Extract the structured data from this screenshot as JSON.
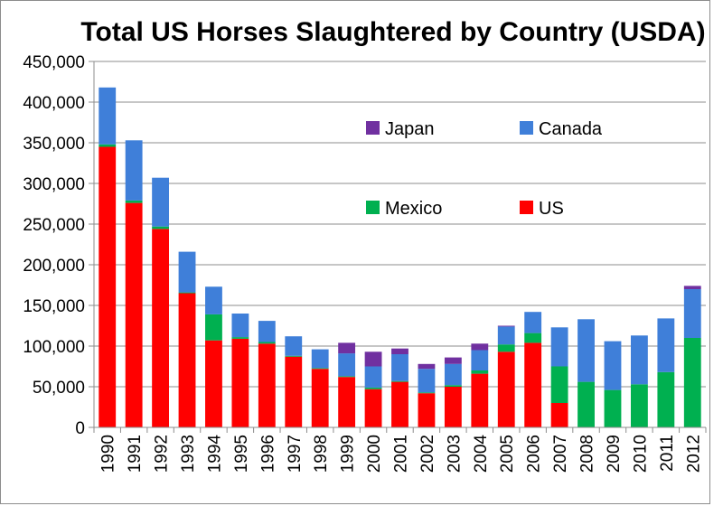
{
  "chart_data": {
    "type": "bar",
    "stacked": true,
    "title": "Total US Horses Slaughtered by Country (USDA)",
    "xlabel": "",
    "ylabel": "",
    "ylim": [
      0,
      450000
    ],
    "yticks": [
      0,
      50000,
      100000,
      150000,
      200000,
      250000,
      300000,
      350000,
      400000,
      450000
    ],
    "ytick_labels": [
      "0",
      "50,000",
      "100,000",
      "150,000",
      "200,000",
      "250,000",
      "300,000",
      "350,000",
      "400,000",
      "450,000"
    ],
    "grid": true,
    "legend_order": [
      "Japan",
      "Canada",
      "Mexico",
      "US"
    ],
    "categories": [
      "1990",
      "1991",
      "1992",
      "1993",
      "1994",
      "1995",
      "1996",
      "1997",
      "1998",
      "1999",
      "2000",
      "2001",
      "2002",
      "2003",
      "2004",
      "2005",
      "2006",
      "2007",
      "2008",
      "2009",
      "2010",
      "2011",
      "2012"
    ],
    "series": [
      {
        "name": "US",
        "color": "#ff0000",
        "values": [
          345000,
          276000,
          244000,
          165000,
          107000,
          109000,
          103000,
          87000,
          72000,
          62000,
          47000,
          56000,
          42000,
          50000,
          66000,
          93000,
          104000,
          30000,
          0,
          0,
          0,
          0,
          0
        ]
      },
      {
        "name": "Mexico",
        "color": "#00b050",
        "values": [
          3000,
          3000,
          3000,
          1000,
          32000,
          2000,
          2000,
          1000,
          1000,
          1000,
          2000,
          1000,
          1000,
          2000,
          4000,
          9000,
          12000,
          45000,
          56000,
          46000,
          53000,
          68000,
          110000
        ]
      },
      {
        "name": "Canada",
        "color": "#3f7fd9",
        "values": [
          70000,
          74000,
          60000,
          50000,
          34000,
          29000,
          26000,
          24000,
          23000,
          28000,
          26000,
          33000,
          29000,
          26000,
          25000,
          22000,
          26000,
          48000,
          77000,
          60000,
          60000,
          66000,
          60000
        ]
      },
      {
        "name": "Japan",
        "color": "#7030a0",
        "values": [
          0,
          0,
          0,
          0,
          0,
          0,
          0,
          0,
          0,
          13000,
          18000,
          7000,
          6000,
          8000,
          8000,
          1000,
          0,
          0,
          0,
          0,
          0,
          0,
          4000
        ]
      }
    ]
  }
}
